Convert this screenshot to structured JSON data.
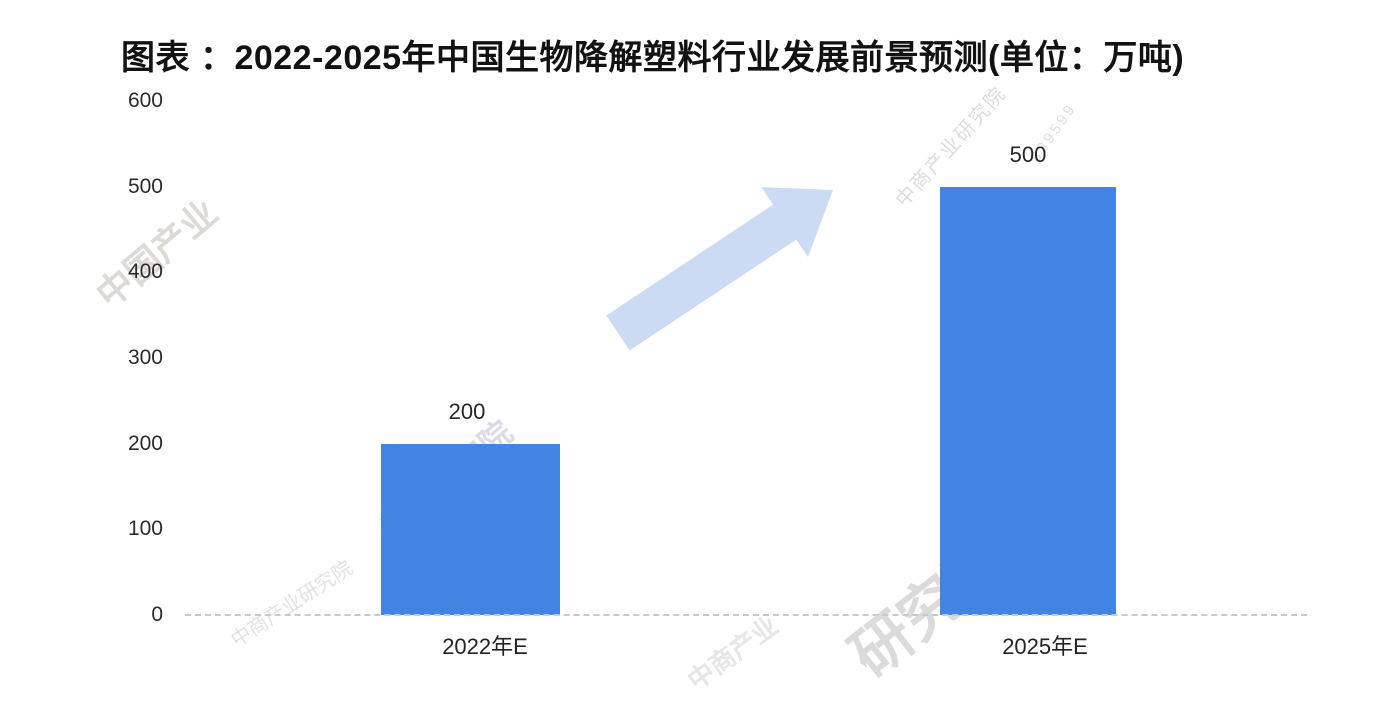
{
  "header": {
    "title": "图表 ：2022-2025年中国生物降解塑料行业发展前景预测(单位：万吨)"
  },
  "chart_data": {
    "type": "bar",
    "title": "2022-2025年中国生物降解塑料行业发展前景预测",
    "unit_label": "万吨",
    "categories": [
      "2022年E",
      "2025年E"
    ],
    "values": [
      200,
      500
    ],
    "ylim": [
      0,
      600
    ],
    "ytick_values": [
      600,
      500,
      400,
      300,
      200,
      100,
      0
    ],
    "grid": false,
    "legend": false,
    "bar_color": "#4284E1",
    "arrow_color": "#C8D9F2",
    "axis_line_color": "#C9C9C9",
    "annotations": [
      "growth-arrow-up-right"
    ]
  },
  "watermarks": {
    "cn_industry": "中国产业",
    "institute": "中商产业研究院",
    "industry_institute": "产业研究院",
    "research": "研究院",
    "digits": "839599",
    "short": "中商产业"
  }
}
